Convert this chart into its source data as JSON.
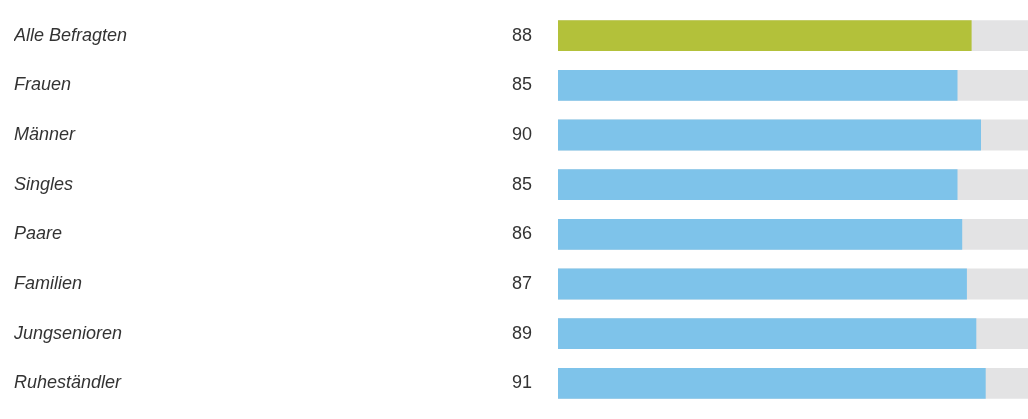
{
  "chart_data": {
    "type": "bar",
    "orientation": "horizontal",
    "categories": [
      "Alle Befragten",
      "Frauen",
      "Männer",
      "Singles",
      "Paare",
      "Familien",
      "Jungsenioren",
      "Ruheständler"
    ],
    "values": [
      88,
      85,
      90,
      85,
      86,
      87,
      89,
      91
    ],
    "colors": [
      "#b3c13a",
      "#7ec3ea",
      "#7ec3ea",
      "#7ec3ea",
      "#7ec3ea",
      "#7ec3ea",
      "#7ec3ea",
      "#7ec3ea"
    ],
    "tick_labels": "y",
    "legend": false,
    "data_labels": true
  }
}
